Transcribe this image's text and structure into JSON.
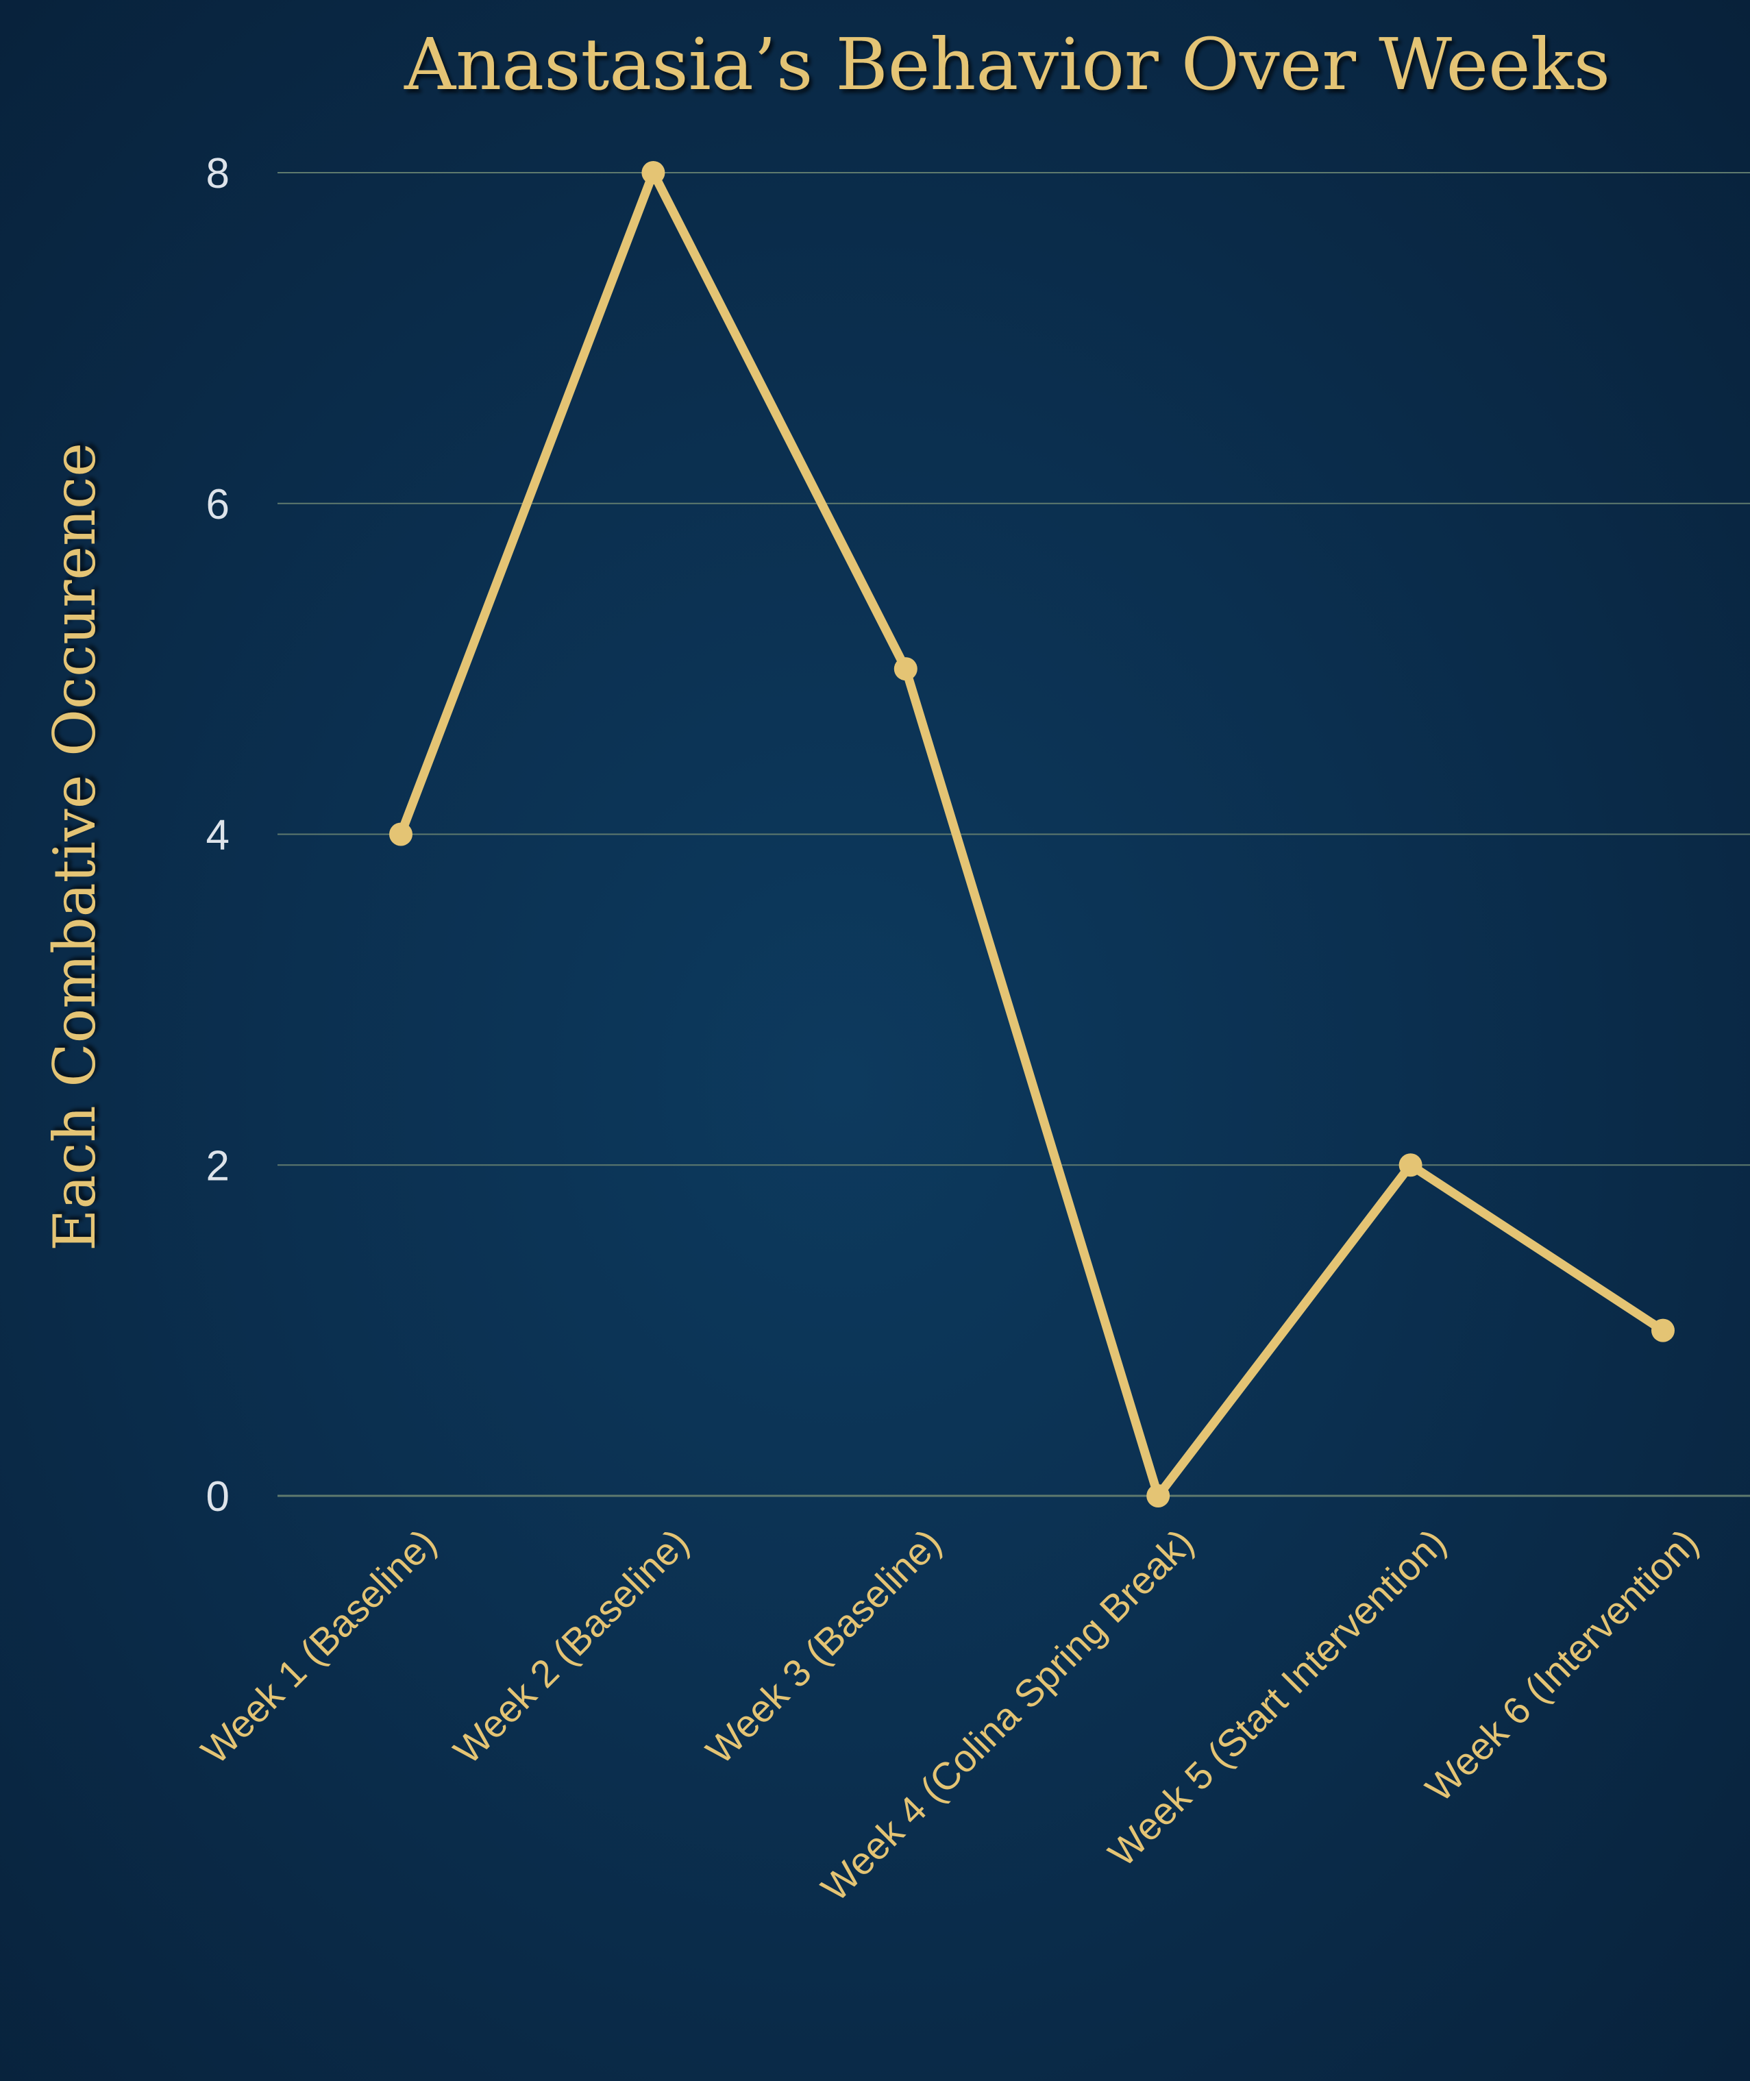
{
  "chart_data": {
    "type": "line",
    "title": "Anastasia’s Behavior Over Weeks",
    "xlabel": "",
    "ylabel": "Each Combative Occurence",
    "categories": [
      "Week 1 (Baseline)",
      "Week 2 (Baseline)",
      "Week 3 (Baseline)",
      "Week 4 (Colina Spring Break)",
      "Week 5 (Start Intervention)",
      "Week 6 (Intervention)"
    ],
    "series": [
      {
        "values": [
          4,
          8,
          5,
          0,
          2,
          1
        ]
      }
    ],
    "ylim": [
      0,
      8
    ],
    "yticks": [
      "0",
      "2",
      "4",
      "6",
      "8"
    ],
    "grid": true,
    "legend": "none"
  },
  "colors": {
    "line": "#e4c474",
    "gridline": "#5f7a6e",
    "title": "#e4c474",
    "ytick": "#dde3ea"
  }
}
